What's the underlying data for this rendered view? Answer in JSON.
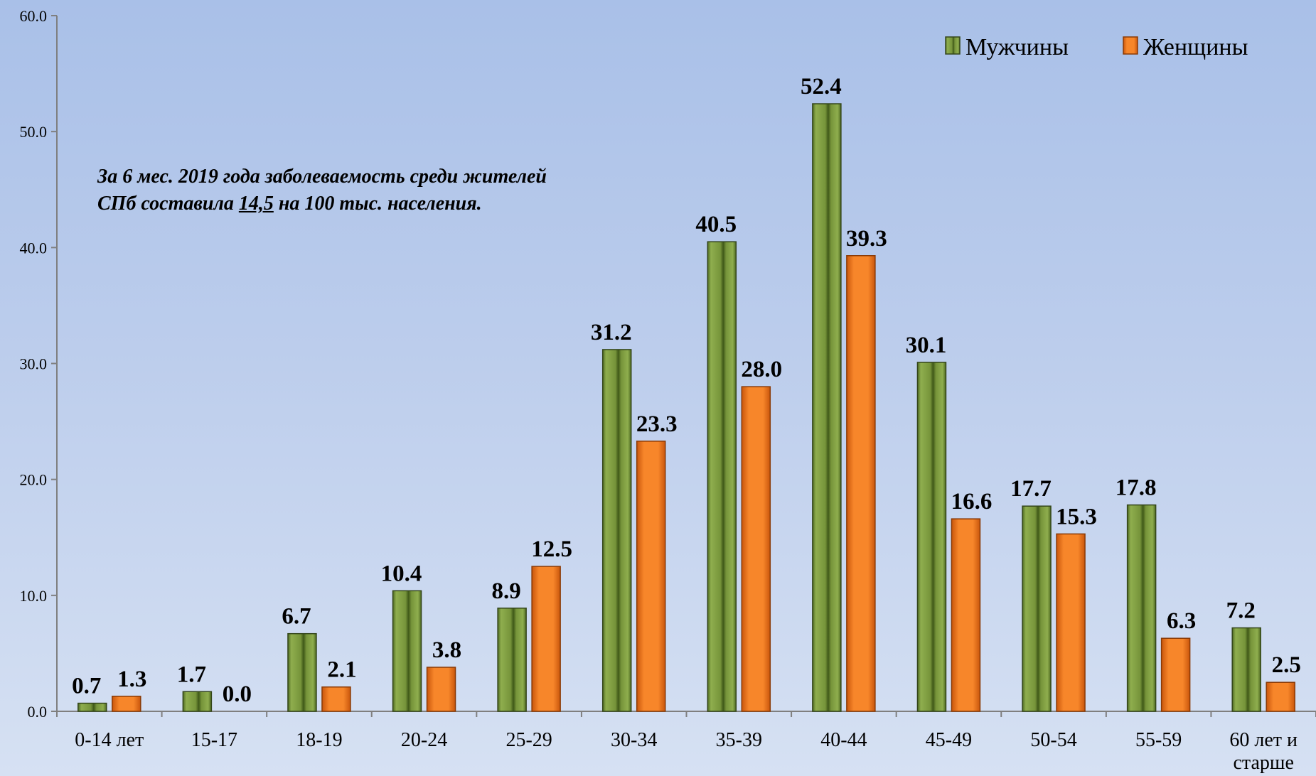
{
  "annotation": {
    "line1": "За 6 мес. 2019 года заболеваемость среди жителей",
    "line2_before": "СПб составила ",
    "line2_highlight": "14,5",
    "line2_after": " на 100 тыс. населения."
  },
  "chart_data": {
    "type": "bar",
    "title": "",
    "xlabel": "",
    "ylabel": "",
    "ylim": [
      0,
      60
    ],
    "yticks": [
      "0.0",
      "10.0",
      "20.0",
      "30.0",
      "40.0",
      "50.0",
      "60.0"
    ],
    "grid": false,
    "legend_position": "top-right",
    "categories": [
      "0-14 лет",
      "15-17",
      "18-19",
      "20-24",
      "25-29",
      "30-34",
      "35-39",
      "40-44",
      "45-49",
      "50-54",
      "55-59",
      "60 лет и старше"
    ],
    "series": [
      {
        "name": "Мужчины",
        "color": "#76923c",
        "values": [
          0.7,
          1.7,
          6.7,
          10.4,
          8.9,
          31.2,
          40.5,
          52.4,
          30.1,
          17.7,
          17.8,
          7.2
        ],
        "labels": [
          "0.7",
          "1.7",
          "6.7",
          "10.4",
          "8.9",
          "31.2",
          "40.5",
          "52.4",
          "30.1",
          "17.7",
          "17.8",
          "7.2"
        ]
      },
      {
        "name": "Женщины",
        "color": "#f07a1c",
        "values": [
          1.3,
          0.0,
          2.1,
          3.8,
          12.5,
          23.3,
          28.0,
          39.3,
          16.6,
          15.3,
          6.3,
          2.5
        ],
        "labels": [
          "1.3",
          "0.0",
          "2.1",
          "3.8",
          "12.5",
          "23.3",
          "28.0",
          "39.3",
          "16.6",
          "15.3",
          "6.3",
          "2.5"
        ]
      }
    ]
  }
}
